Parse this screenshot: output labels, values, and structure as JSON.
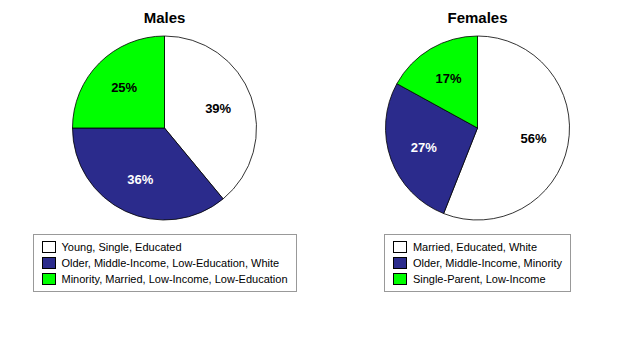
{
  "chart_data": [
    {
      "type": "pie",
      "title": "Males",
      "categories": [
        "Young, Single, Educated",
        "Older, Middle-Income, Low-Education, White",
        "Minority, Married, Low-Income, Low-Education"
      ],
      "values": [
        39,
        36,
        25
      ],
      "value_labels": [
        "39%",
        "36%",
        "25%"
      ],
      "data_labels": true,
      "colors": [
        "#ffffff",
        "#2b2b8c",
        "#00ff00"
      ]
    },
    {
      "type": "pie",
      "title": "Females",
      "categories": [
        "Married, Educated, White",
        "Older, Middle-Income, Minority",
        "Single-Parent, Low-Income"
      ],
      "values": [
        56,
        27,
        17
      ],
      "value_labels": [
        "56%",
        "27%",
        "17%"
      ],
      "data_labels": true,
      "colors": [
        "#ffffff",
        "#2b2b8c",
        "#00ff00"
      ]
    }
  ]
}
